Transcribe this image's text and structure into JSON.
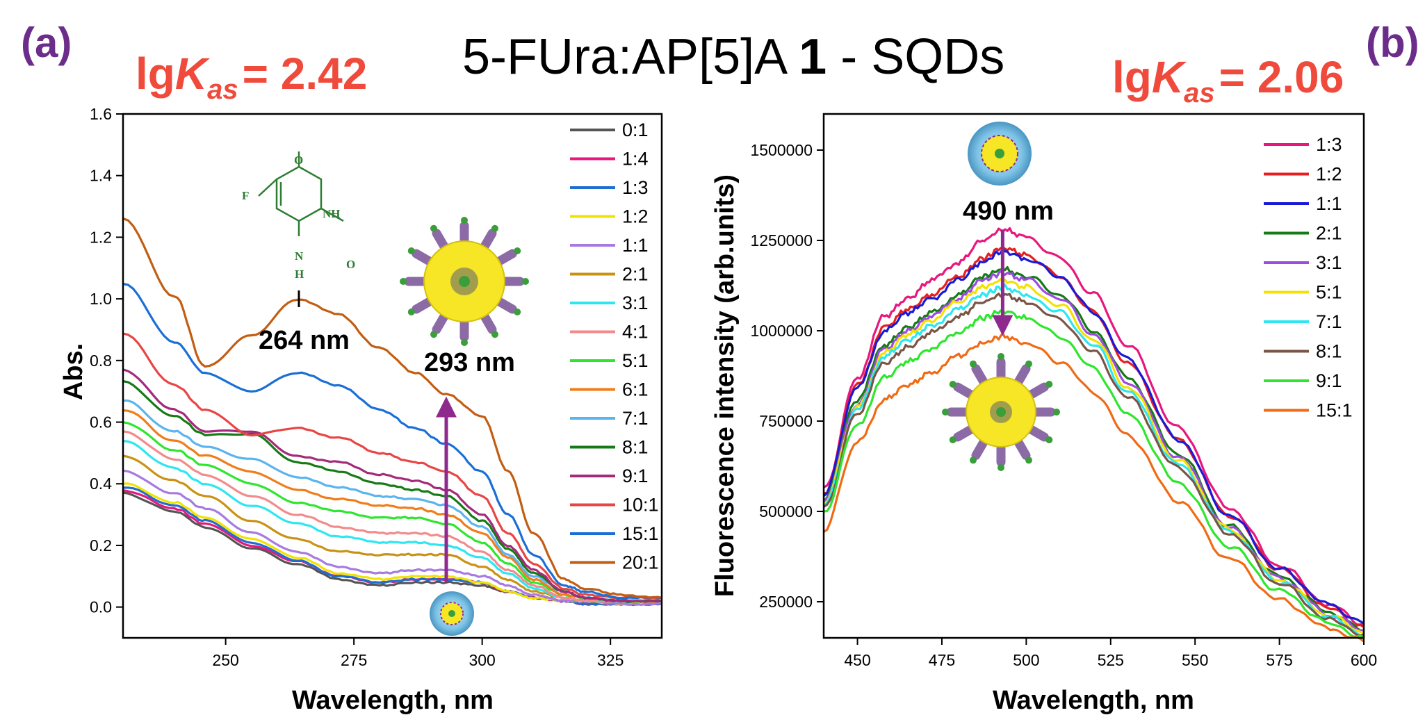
{
  "figure": {
    "title_main": "5-FUra:AP[5]A ",
    "title_bold": "1",
    "title_tail": " - SQDs"
  },
  "chart_data": [
    {
      "panel": "(a)",
      "type": "line",
      "kas_prefix": "lg",
      "kas_symbol": "K",
      "kas_sub": "as",
      "kas_value": "= 2.42",
      "xlabel": "Wavelength, nm",
      "ylabel": "Abs.",
      "xlim": [
        230,
        335
      ],
      "ylim": [
        -0.1,
        1.6
      ],
      "xticks": [
        250,
        275,
        300,
        325
      ],
      "yticks": [
        0.0,
        0.2,
        0.4,
        0.6,
        0.8,
        1.0,
        1.2,
        1.4,
        1.6
      ],
      "legend": "top-right",
      "annotations": [
        {
          "text": "264 nm",
          "x": 264,
          "y": 1.0
        },
        {
          "text": "293 nm",
          "x": 293,
          "y": 0.7,
          "arrow": "up",
          "arrow_from": 0.08,
          "arrow_to": 0.69
        }
      ],
      "molecule_labels": [
        "O",
        "F",
        "NH",
        "N",
        "H",
        "O"
      ],
      "x": [
        230,
        240,
        246,
        255,
        264,
        272,
        280,
        287,
        293,
        300,
        305,
        310,
        316,
        320,
        327,
        335
      ],
      "series": [
        {
          "name": "0:1",
          "color": "#555555",
          "values": [
            0.37,
            0.31,
            0.26,
            0.19,
            0.14,
            0.09,
            0.07,
            0.08,
            0.08,
            0.07,
            0.05,
            0.03,
            0.02,
            0.01,
            0.01,
            0.01
          ]
        },
        {
          "name": "1:4",
          "color": "#e8177d",
          "values": [
            0.38,
            0.32,
            0.27,
            0.2,
            0.15,
            0.1,
            0.08,
            0.09,
            0.09,
            0.08,
            0.05,
            0.03,
            0.02,
            0.01,
            0.01,
            0.01
          ]
        },
        {
          "name": "1:3",
          "color": "#1f6fd1",
          "values": [
            0.39,
            0.33,
            0.28,
            0.21,
            0.15,
            0.1,
            0.08,
            0.09,
            0.09,
            0.08,
            0.05,
            0.03,
            0.02,
            0.01,
            0.01,
            0.01
          ]
        },
        {
          "name": "1:2",
          "color": "#f2e200",
          "values": [
            0.4,
            0.34,
            0.29,
            0.22,
            0.16,
            0.11,
            0.09,
            0.1,
            0.1,
            0.08,
            0.05,
            0.03,
            0.02,
            0.02,
            0.01,
            0.01
          ]
        },
        {
          "name": "1:1",
          "color": "#a77ae0",
          "values": [
            0.44,
            0.37,
            0.32,
            0.24,
            0.18,
            0.13,
            0.11,
            0.12,
            0.12,
            0.1,
            0.07,
            0.04,
            0.02,
            0.02,
            0.01,
            0.01
          ]
        },
        {
          "name": "2:1",
          "color": "#c89215",
          "values": [
            0.49,
            0.41,
            0.36,
            0.28,
            0.22,
            0.18,
            0.17,
            0.17,
            0.17,
            0.13,
            0.09,
            0.05,
            0.03,
            0.02,
            0.02,
            0.02
          ]
        },
        {
          "name": "3:1",
          "color": "#2ee6f0",
          "values": [
            0.54,
            0.45,
            0.4,
            0.33,
            0.27,
            0.23,
            0.21,
            0.21,
            0.2,
            0.16,
            0.11,
            0.06,
            0.03,
            0.02,
            0.02,
            0.02
          ]
        },
        {
          "name": "4:1",
          "color": "#f28b8b",
          "values": [
            0.57,
            0.48,
            0.43,
            0.36,
            0.3,
            0.26,
            0.24,
            0.24,
            0.23,
            0.18,
            0.12,
            0.07,
            0.03,
            0.02,
            0.02,
            0.02
          ]
        },
        {
          "name": "5:1",
          "color": "#2ee62e",
          "values": [
            0.6,
            0.51,
            0.46,
            0.4,
            0.34,
            0.31,
            0.29,
            0.29,
            0.27,
            0.21,
            0.14,
            0.08,
            0.04,
            0.03,
            0.02,
            0.02
          ]
        },
        {
          "name": "6:1",
          "color": "#f07d1a",
          "values": [
            0.64,
            0.54,
            0.49,
            0.44,
            0.38,
            0.35,
            0.33,
            0.32,
            0.3,
            0.24,
            0.16,
            0.09,
            0.04,
            0.03,
            0.02,
            0.02
          ]
        },
        {
          "name": "7:1",
          "color": "#5ab4ee",
          "values": [
            0.67,
            0.57,
            0.52,
            0.48,
            0.42,
            0.39,
            0.36,
            0.35,
            0.33,
            0.26,
            0.17,
            0.1,
            0.05,
            0.03,
            0.02,
            0.02
          ]
        },
        {
          "name": "8:1",
          "color": "#167a16",
          "values": [
            0.73,
            0.62,
            0.56,
            0.56,
            0.47,
            0.44,
            0.4,
            0.38,
            0.36,
            0.28,
            0.19,
            0.11,
            0.05,
            0.03,
            0.02,
            0.02
          ]
        },
        {
          "name": "9:1",
          "color": "#a42a7a",
          "values": [
            0.77,
            0.64,
            0.57,
            0.57,
            0.49,
            0.47,
            0.43,
            0.41,
            0.38,
            0.3,
            0.2,
            0.12,
            0.05,
            0.03,
            0.02,
            0.02
          ]
        },
        {
          "name": "10:1",
          "color": "#e84545",
          "values": [
            0.89,
            0.72,
            0.64,
            0.56,
            0.58,
            0.55,
            0.5,
            0.47,
            0.44,
            0.36,
            0.24,
            0.14,
            0.06,
            0.04,
            0.03,
            0.03
          ]
        },
        {
          "name": "15:1",
          "color": "#1a6fd6",
          "values": [
            1.05,
            0.86,
            0.76,
            0.7,
            0.76,
            0.72,
            0.64,
            0.58,
            0.53,
            0.44,
            0.3,
            0.17,
            0.07,
            0.05,
            0.03,
            0.03
          ]
        },
        {
          "name": "20:1",
          "color": "#c25d12",
          "values": [
            1.26,
            1.01,
            0.78,
            0.88,
            1.0,
            0.95,
            0.84,
            0.76,
            0.69,
            0.62,
            0.44,
            0.24,
            0.09,
            0.06,
            0.04,
            0.03
          ]
        }
      ]
    },
    {
      "panel": "(b)",
      "type": "line",
      "kas_prefix": "lg",
      "kas_symbol": "K",
      "kas_sub": "as",
      "kas_value": "= 2.06",
      "xlabel": "Wavelength, nm",
      "ylabel": "Fluorescence intensity (arb.units)",
      "xlim": [
        440,
        600
      ],
      "ylim": [
        150000,
        1600000
      ],
      "xticks": [
        450,
        475,
        500,
        525,
        550,
        575,
        600
      ],
      "yticks": [
        250000,
        500000,
        750000,
        1000000,
        1250000,
        1500000
      ],
      "legend": "top-right",
      "annotations": [
        {
          "text": "490 nm",
          "x": 493,
          "y": 1280000,
          "arrow": "down",
          "arrow_from": 1280000,
          "arrow_to": 980000
        }
      ],
      "x": [
        440,
        450,
        458,
        465,
        472,
        480,
        487,
        493,
        500,
        510,
        520,
        530,
        545,
        560,
        575,
        590,
        600
      ],
      "series": [
        {
          "name": "1:3",
          "color": "#e8177d",
          "values": [
            560000,
            870000,
            1040000,
            1090000,
            1140000,
            1190000,
            1250000,
            1280000,
            1260000,
            1200000,
            1100000,
            960000,
            730000,
            510000,
            350000,
            240000,
            190000
          ]
        },
        {
          "name": "1:2",
          "color": "#e81d1d",
          "values": [
            550000,
            850000,
            1010000,
            1060000,
            1100000,
            1150000,
            1200000,
            1230000,
            1210000,
            1150000,
            1050000,
            910000,
            700000,
            490000,
            340000,
            230000,
            180000
          ]
        },
        {
          "name": "1:1",
          "color": "#1a1ad6",
          "values": [
            550000,
            840000,
            1000000,
            1050000,
            1090000,
            1140000,
            1190000,
            1220000,
            1200000,
            1150000,
            1050000,
            920000,
            700000,
            490000,
            340000,
            240000,
            190000
          ]
        },
        {
          "name": "2:1",
          "color": "#167a16",
          "values": [
            530000,
            810000,
            960000,
            1010000,
            1050000,
            1100000,
            1150000,
            1170000,
            1150000,
            1100000,
            1000000,
            870000,
            660000,
            460000,
            320000,
            220000,
            170000
          ]
        },
        {
          "name": "3:1",
          "color": "#9b4be0",
          "values": [
            525000,
            800000,
            950000,
            1000000,
            1040000,
            1090000,
            1140000,
            1160000,
            1140000,
            1090000,
            990000,
            860000,
            650000,
            455000,
            315000,
            215000,
            170000
          ]
        },
        {
          "name": "5:1",
          "color": "#f2e200",
          "values": [
            520000,
            790000,
            940000,
            990000,
            1030000,
            1080000,
            1120000,
            1140000,
            1120000,
            1070000,
            975000,
            845000,
            640000,
            450000,
            310000,
            210000,
            165000
          ]
        },
        {
          "name": "7:1",
          "color": "#2ee6f0",
          "values": [
            515000,
            780000,
            930000,
            975000,
            1015000,
            1060000,
            1100000,
            1120000,
            1100000,
            1050000,
            960000,
            830000,
            630000,
            445000,
            305000,
            205000,
            160000
          ]
        },
        {
          "name": "8:1",
          "color": "#7a5546",
          "values": [
            510000,
            770000,
            910000,
            955000,
            995000,
            1040000,
            1080000,
            1100000,
            1080000,
            1030000,
            940000,
            815000,
            620000,
            440000,
            300000,
            200000,
            160000
          ]
        },
        {
          "name": "9:1",
          "color": "#2ee62e",
          "values": [
            500000,
            740000,
            870000,
            915000,
            950000,
            995000,
            1035000,
            1055000,
            1035000,
            985000,
            895000,
            770000,
            580000,
            405000,
            280000,
            190000,
            150000
          ]
        },
        {
          "name": "15:1",
          "color": "#f06a14",
          "values": [
            450000,
            690000,
            810000,
            850000,
            885000,
            930000,
            965000,
            985000,
            965000,
            915000,
            830000,
            710000,
            530000,
            370000,
            255000,
            175000,
            140000
          ]
        }
      ]
    }
  ]
}
